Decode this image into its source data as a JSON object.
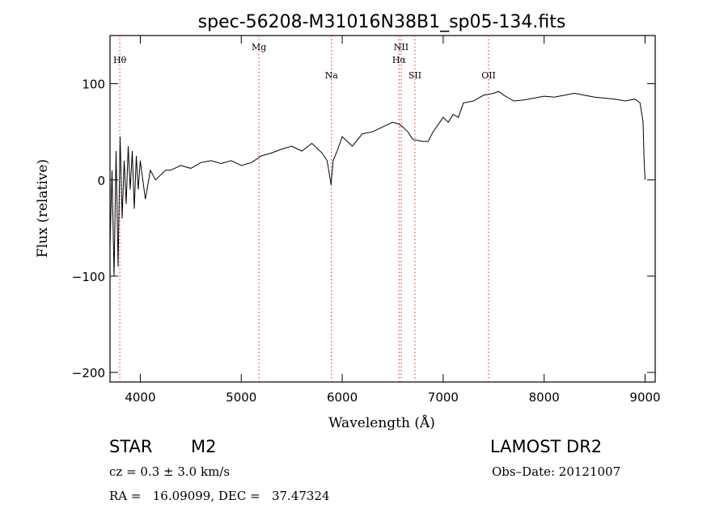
{
  "chart_data": {
    "type": "line",
    "title": "spec-56208-M31016N38B1_sp05-134.fits",
    "xlabel": "Wavelength (Å)",
    "ylabel": "Flux (relative)",
    "xlim": [
      3700,
      9100
    ],
    "ylim": [
      -210,
      150
    ],
    "x_ticks": [
      4000,
      5000,
      6000,
      7000,
      8000,
      9000
    ],
    "y_ticks": [
      -200,
      -100,
      0,
      100
    ],
    "grid": false,
    "series": [
      {
        "color": "#000000",
        "x": [
          3700,
          3720,
          3740,
          3760,
          3780,
          3800,
          3820,
          3840,
          3860,
          3880,
          3900,
          3920,
          3940,
          3960,
          3980,
          4000,
          4050,
          4100,
          4150,
          4200,
          4250,
          4300,
          4400,
          4500,
          4600,
          4700,
          4800,
          4900,
          5000,
          5100,
          5200,
          5300,
          5400,
          5500,
          5600,
          5700,
          5800,
          5850,
          5890,
          5910,
          5950,
          6000,
          6100,
          6200,
          6300,
          6400,
          6500,
          6563,
          6600,
          6650,
          6700,
          6800,
          6850,
          6900,
          7000,
          7050,
          7100,
          7150,
          7200,
          7300,
          7400,
          7500,
          7550,
          7600,
          7650,
          7700,
          7800,
          7900,
          8000,
          8100,
          8200,
          8300,
          8400,
          8500,
          8600,
          8700,
          8800,
          8900,
          8950,
          8980,
          8990,
          9000
        ],
        "y": [
          -70,
          10,
          -100,
          30,
          -90,
          45,
          -40,
          20,
          -25,
          35,
          -10,
          30,
          -30,
          25,
          -10,
          20,
          -20,
          10,
          0,
          5,
          10,
          10,
          15,
          12,
          18,
          20,
          17,
          20,
          15,
          18,
          25,
          28,
          32,
          35,
          30,
          38,
          28,
          20,
          -5,
          20,
          30,
          45,
          35,
          48,
          50,
          55,
          60,
          58,
          55,
          50,
          42,
          40,
          40,
          50,
          65,
          60,
          68,
          65,
          80,
          82,
          88,
          90,
          92,
          88,
          85,
          82,
          83,
          85,
          87,
          86,
          88,
          90,
          88,
          86,
          85,
          84,
          82,
          84,
          80,
          60,
          20,
          0
        ],
        "label": ""
      }
    ],
    "lines": [
      {
        "x": 3797,
        "label": "Hθ",
        "row": 1
      },
      {
        "x": 5175,
        "label": "Mg",
        "row": 0
      },
      {
        "x": 5893,
        "label": "Na",
        "row": 2
      },
      {
        "x": 6563,
        "label": "Hα",
        "row": 1
      },
      {
        "x": 6584,
        "label": "NII",
        "row": 0
      },
      {
        "x": 6720,
        "label": "SII",
        "row": 2
      },
      {
        "x": 7450,
        "label": "OII",
        "row": 2
      }
    ]
  },
  "info": {
    "object_class": "STAR",
    "subclass": "M2",
    "survey": "LAMOST DR2",
    "cz": "cz = 0.3 ± 3.0 km/s",
    "obs_date": "Obs–Date: 20121007",
    "coords": "RA =   16.09099, DEC =   37.47324"
  }
}
